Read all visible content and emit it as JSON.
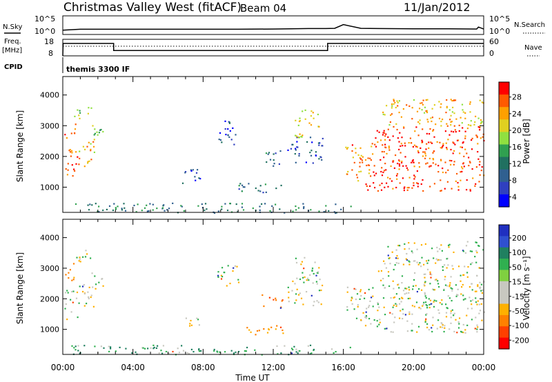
{
  "header": {
    "title": "Christmas Valley West (fitACF)",
    "beam": "Beam 04",
    "date": "11/Jan/2012"
  },
  "legend": {
    "cpid_label": "CPID",
    "cpid_value": "themis 3300 IF",
    "nsearch_label": "N.Search",
    "nave_label": "Nave"
  },
  "chart_data": [
    {
      "type": "line",
      "title": "",
      "ylabel": "N.Sky",
      "y_ticks_left": [
        "10^5",
        "10^0"
      ],
      "y_ticks_right": [
        "10^5",
        "10^0"
      ],
      "y2label": "N.Search",
      "series": [
        {
          "name": "N.Sky",
          "x": [
            0,
            1,
            2,
            3,
            4,
            6,
            8,
            10,
            12,
            13,
            14,
            15,
            15.5,
            16,
            17,
            18,
            20,
            22,
            23.6,
            23.7,
            24
          ],
          "y": [
            0.1,
            0.5,
            0.5,
            0.5,
            0.5,
            0.5,
            0.5,
            0.5,
            0.6,
            0.7,
            0.8,
            0.8,
            0.9,
            2.6,
            0.9,
            0.8,
            0.7,
            0.7,
            0.6,
            1.5,
            0.6
          ]
        }
      ]
    },
    {
      "type": "line",
      "title": "",
      "ylabel": "Freq. [MHz]",
      "y_ticks_left": [
        "18",
        "8"
      ],
      "y_ticks_right": [
        "60",
        "0"
      ],
      "y2label": "Nave",
      "series": [
        {
          "name": "Freq",
          "x": [
            0,
            0.02,
            2.9,
            2.9,
            15.1,
            15.1,
            24
          ],
          "y": [
            8,
            15.5,
            15.5,
            11.2,
            11.2,
            15.5,
            15.5
          ]
        },
        {
          "name": "Nave",
          "x": [
            0,
            24
          ],
          "y": [
            35,
            35
          ]
        }
      ]
    },
    {
      "type": "heatmap",
      "title": "",
      "xlabel": "",
      "ylabel": "Slant Range [km]",
      "xlim": [
        0,
        24
      ],
      "ylim": [
        180,
        4600
      ],
      "y_ticks": [
        1000,
        2000,
        3000,
        4000
      ],
      "colorbar": {
        "label": "Power [dB]",
        "ticks": [
          "28",
          "24",
          "20",
          "16",
          "12",
          "8",
          "4"
        ],
        "colors": [
          "#ff0000",
          "#ff5a00",
          "#ffa000",
          "#e0d020",
          "#90e040",
          "#30a050",
          "#207060",
          "#306090",
          "#3040c0",
          "#0000ff"
        ]
      },
      "regions": [
        {
          "t0": 0.0,
          "t1": 0.9,
          "r0": 1300,
          "r1": 2300,
          "v": 28
        },
        {
          "t0": 0.9,
          "t1": 1.9,
          "r0": 1700,
          "r1": 2500,
          "v": 22
        },
        {
          "t0": 1.6,
          "t1": 2.3,
          "r0": 2400,
          "r1": 3100,
          "v": 14
        },
        {
          "t0": 0.0,
          "t1": 0.7,
          "r0": 2600,
          "r1": 3200,
          "v": 26
        },
        {
          "t0": 0.6,
          "t1": 1.6,
          "r0": 3200,
          "r1": 3700,
          "v": 18
        },
        {
          "t0": 6.8,
          "t1": 7.8,
          "r0": 1100,
          "r1": 1600,
          "v": 6
        },
        {
          "t0": 8.8,
          "t1": 10.0,
          "r0": 2400,
          "r1": 3200,
          "v": 5
        },
        {
          "t0": 10.0,
          "t1": 12.6,
          "r0": 850,
          "r1": 1150,
          "v": 8
        },
        {
          "t0": 11.3,
          "t1": 12.5,
          "r0": 1700,
          "r1": 2200,
          "v": 8
        },
        {
          "t0": 12.8,
          "t1": 14.8,
          "r0": 1800,
          "r1": 2700,
          "v": 5
        },
        {
          "t0": 13.2,
          "t1": 14.6,
          "r0": 2600,
          "r1": 3600,
          "v": 20
        },
        {
          "t0": 16.1,
          "t1": 17.6,
          "r0": 1200,
          "r1": 2400,
          "v": 24
        },
        {
          "t0": 17.2,
          "t1": 24.0,
          "r0": 900,
          "r1": 1800,
          "v": 28
        },
        {
          "t0": 17.6,
          "t1": 24.0,
          "r0": 1800,
          "r1": 2500,
          "v": 27
        },
        {
          "t0": 17.8,
          "t1": 24.0,
          "r0": 2300,
          "r1": 3000,
          "v": 28
        },
        {
          "t0": 18.2,
          "t1": 24.0,
          "r0": 3000,
          "r1": 3900,
          "v": 22
        },
        {
          "t0": 0.3,
          "t1": 16.5,
          "r0": 180,
          "r1": 500,
          "v": 10
        }
      ]
    },
    {
      "type": "heatmap",
      "title": "",
      "xlabel": "Time UT",
      "ylabel": "Slant Range [km]",
      "xlim": [
        0,
        24
      ],
      "ylim": [
        180,
        4600
      ],
      "x_ticks": [
        "00:00",
        "04:00",
        "08:00",
        "12:00",
        "16:00",
        "20:00",
        "00:00"
      ],
      "y_ticks": [
        1000,
        2000,
        3000,
        4000
      ],
      "colorbar": {
        "label": "Velocity [m s⁻¹]",
        "ticks": [
          "200",
          "100",
          "50",
          "15",
          "-15",
          "-50",
          "-100",
          "-200"
        ],
        "colors": [
          "#2030c0",
          "#3050d0",
          "#208060",
          "#30b050",
          "#80d040",
          "#c8c8c0",
          "#c8c8c0",
          "#ffb000",
          "#ff8000",
          "#ff4000",
          "#ff0000"
        ]
      },
      "regions": [
        {
          "t0": 0.0,
          "t1": 0.9,
          "r0": 1300,
          "r1": 2300,
          "v": 0
        },
        {
          "t0": 0.9,
          "t1": 1.9,
          "r0": 1700,
          "r1": 2500,
          "v": 0
        },
        {
          "t0": 1.6,
          "t1": 2.3,
          "r0": 2400,
          "r1": 3100,
          "v": 0
        },
        {
          "t0": 0.0,
          "t1": 0.7,
          "r0": 2600,
          "r1": 3200,
          "v": -60
        },
        {
          "t0": 0.6,
          "t1": 1.6,
          "r0": 3200,
          "r1": 3700,
          "v": 0
        },
        {
          "t0": 6.8,
          "t1": 7.8,
          "r0": 1100,
          "r1": 1600,
          "v": 0
        },
        {
          "t0": 8.8,
          "t1": 10.0,
          "r0": 2400,
          "r1": 3200,
          "v": 0
        },
        {
          "t0": 10.0,
          "t1": 12.6,
          "r0": 850,
          "r1": 1150,
          "v": -60
        },
        {
          "t0": 11.3,
          "t1": 12.5,
          "r0": 1700,
          "r1": 2200,
          "v": -80
        },
        {
          "t0": 12.8,
          "t1": 14.8,
          "r0": 1800,
          "r1": 2700,
          "v": 0
        },
        {
          "t0": 13.2,
          "t1": 14.6,
          "r0": 2600,
          "r1": 3600,
          "v": 0
        },
        {
          "t0": 16.1,
          "t1": 17.6,
          "r0": 1200,
          "r1": 2400,
          "v": 0
        },
        {
          "t0": 17.2,
          "t1": 24.0,
          "r0": 900,
          "r1": 1800,
          "v": 0
        },
        {
          "t0": 17.6,
          "t1": 24.0,
          "r0": 1800,
          "r1": 2500,
          "v": 0
        },
        {
          "t0": 17.8,
          "t1": 24.0,
          "r0": 2300,
          "r1": 3000,
          "v": 0
        },
        {
          "t0": 18.2,
          "t1": 24.0,
          "r0": 3000,
          "r1": 3900,
          "v": 0
        },
        {
          "t0": 0.3,
          "t1": 16.5,
          "r0": 180,
          "r1": 500,
          "v": 30
        }
      ]
    }
  ]
}
